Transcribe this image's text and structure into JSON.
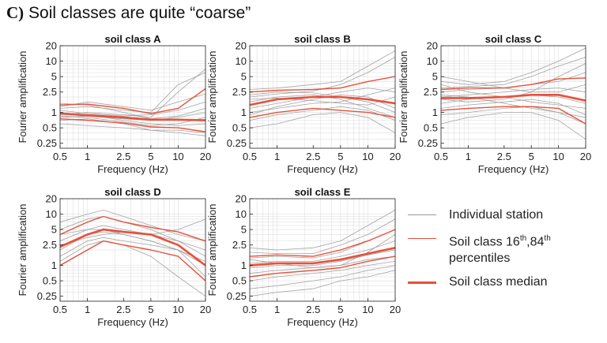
{
  "header": {
    "tag": "C)",
    "text": "Soil classes are quite “coarse”"
  },
  "colors": {
    "individual": "#9a9a9a",
    "percentile": "#e8503a",
    "median": "#e8503a",
    "axis": "#222222",
    "grid": "#d9d9d9"
  },
  "legend": {
    "individual_label": "Individual station",
    "percentile_line1_pre": "Soil class 16",
    "percentile_sup1": "th",
    "percentile_mid": ",84",
    "percentile_sup2": "th",
    "percentile_line2": "percentiles",
    "median_label": "Soil class median"
  },
  "chart_data": [
    {
      "type": "line",
      "title": "soil class A",
      "xlabel": "Frequency (Hz)",
      "ylabel": "Fourier amplification",
      "xscale": "log",
      "yscale": "log",
      "xlim": [
        0.5,
        20
      ],
      "ylim": [
        0.2,
        20
      ],
      "xticks": [
        "0.5",
        "1",
        "2.5",
        "5",
        "10",
        "20"
      ],
      "yticks": [
        "0.25",
        "0.5",
        "1",
        "2.5",
        "5",
        "10",
        "20"
      ],
      "grid": true,
      "x": [
        0.5,
        1,
        2.5,
        5,
        10,
        20
      ],
      "series": [
        {
          "role": "median",
          "values": [
            0.95,
            0.88,
            0.8,
            0.72,
            0.72,
            0.7
          ]
        },
        {
          "role": "p16",
          "values": [
            0.75,
            0.7,
            0.62,
            0.52,
            0.5,
            0.42
          ]
        },
        {
          "role": "p84",
          "values": [
            1.4,
            1.45,
            1.2,
            0.95,
            1.2,
            2.9
          ]
        },
        {
          "role": "station",
          "values": [
            1.2,
            1.3,
            1.1,
            1.0,
            3.5,
            6.0
          ]
        },
        {
          "role": "station",
          "values": [
            0.9,
            1.0,
            0.9,
            0.8,
            2.5,
            7.0
          ]
        },
        {
          "role": "station",
          "values": [
            1.3,
            1.6,
            1.3,
            1.1,
            1.6,
            2.3
          ]
        },
        {
          "role": "station",
          "values": [
            1.1,
            0.95,
            0.85,
            0.9,
            1.1,
            1.6
          ]
        },
        {
          "role": "station",
          "values": [
            0.8,
            0.85,
            0.75,
            0.7,
            0.8,
            1.0
          ]
        },
        {
          "role": "station",
          "values": [
            1.0,
            0.9,
            0.7,
            0.6,
            0.55,
            0.6
          ]
        },
        {
          "role": "station",
          "values": [
            0.7,
            0.75,
            0.6,
            0.45,
            0.45,
            0.4
          ]
        },
        {
          "role": "station",
          "values": [
            0.6,
            0.55,
            0.5,
            0.45,
            0.4,
            0.35
          ]
        },
        {
          "role": "station",
          "values": [
            1.5,
            1.4,
            1.0,
            0.75,
            0.85,
            1.2
          ]
        },
        {
          "role": "station",
          "values": [
            0.85,
            0.8,
            0.65,
            0.55,
            0.6,
            0.8
          ]
        }
      ]
    },
    {
      "type": "line",
      "title": "soil class B",
      "xlabel": "Frequency (Hz)",
      "ylabel": "Fourier amplification",
      "xscale": "log",
      "yscale": "log",
      "xlim": [
        0.5,
        20
      ],
      "ylim": [
        0.2,
        20
      ],
      "xticks": [
        "0.5",
        "1",
        "2.5",
        "5",
        "10",
        "20"
      ],
      "yticks": [
        "0.25",
        "0.5",
        "1",
        "2.5",
        "5",
        "10",
        "20"
      ],
      "grid": true,
      "x": [
        0.5,
        1,
        2.5,
        5,
        10,
        20
      ],
      "series": [
        {
          "role": "median",
          "values": [
            1.4,
            1.8,
            2.0,
            2.0,
            1.8,
            1.5
          ]
        },
        {
          "role": "p16",
          "values": [
            0.8,
            1.0,
            1.2,
            1.1,
            1.0,
            0.8
          ]
        },
        {
          "role": "p84",
          "values": [
            2.5,
            2.7,
            2.8,
            3.0,
            4.0,
            5.0
          ]
        },
        {
          "role": "station",
          "values": [
            2.8,
            3.0,
            3.5,
            4.0,
            8.0,
            16.0
          ]
        },
        {
          "role": "station",
          "values": [
            2.0,
            2.3,
            2.6,
            3.5,
            6.0,
            12.0
          ]
        },
        {
          "role": "station",
          "values": [
            1.2,
            1.5,
            2.0,
            2.5,
            3.0,
            2.5
          ]
        },
        {
          "role": "station",
          "values": [
            0.9,
            1.3,
            1.8,
            2.2,
            2.0,
            1.2
          ]
        },
        {
          "role": "station",
          "values": [
            1.6,
            2.0,
            2.2,
            1.8,
            1.2,
            0.8
          ]
        },
        {
          "role": "station",
          "values": [
            0.7,
            0.9,
            1.1,
            1.3,
            1.1,
            0.7
          ]
        },
        {
          "role": "station",
          "values": [
            0.5,
            0.6,
            0.9,
            1.0,
            0.8,
            0.4
          ]
        },
        {
          "role": "station",
          "values": [
            2.2,
            2.5,
            2.4,
            2.0,
            1.6,
            1.0
          ]
        },
        {
          "role": "station",
          "values": [
            1.0,
            1.2,
            1.5,
            1.6,
            2.2,
            3.0
          ]
        },
        {
          "role": "station",
          "values": [
            1.8,
            1.9,
            1.7,
            1.5,
            1.4,
            2.0
          ]
        }
      ]
    },
    {
      "type": "line",
      "title": "soil class C",
      "xlabel": "Frequency (Hz)",
      "ylabel": "Fourier amplification",
      "xscale": "log",
      "yscale": "log",
      "xlim": [
        0.5,
        20
      ],
      "ylim": [
        0.2,
        20
      ],
      "xticks": [
        "0.5",
        "1",
        "2.5",
        "5",
        "10",
        "20"
      ],
      "yticks": [
        "0.25",
        "0.5",
        "1",
        "2.5",
        "5",
        "10",
        "20"
      ],
      "grid": true,
      "x": [
        0.5,
        1,
        2.5,
        5,
        10,
        20
      ],
      "series": [
        {
          "role": "median",
          "values": [
            1.9,
            1.9,
            2.0,
            2.2,
            2.2,
            1.7
          ]
        },
        {
          "role": "p16",
          "values": [
            1.1,
            1.2,
            1.3,
            1.3,
            1.2,
            0.6
          ]
        },
        {
          "role": "p84",
          "values": [
            2.8,
            3.0,
            3.0,
            3.5,
            4.5,
            4.7
          ]
        },
        {
          "role": "station",
          "values": [
            4.0,
            3.5,
            4.0,
            6.0,
            10.0,
            18.0
          ]
        },
        {
          "role": "station",
          "values": [
            3.0,
            3.2,
            3.5,
            5.0,
            8.0,
            12.0
          ]
        },
        {
          "role": "station",
          "values": [
            2.5,
            2.8,
            3.0,
            3.5,
            4.0,
            6.0
          ]
        },
        {
          "role": "station",
          "values": [
            2.0,
            2.2,
            2.5,
            2.8,
            3.0,
            2.5
          ]
        },
        {
          "role": "station",
          "values": [
            1.5,
            1.8,
            2.0,
            2.2,
            2.0,
            1.5
          ]
        },
        {
          "role": "station",
          "values": [
            1.2,
            1.4,
            1.6,
            1.8,
            1.5,
            0.9
          ]
        },
        {
          "role": "station",
          "values": [
            0.9,
            1.0,
            1.2,
            1.3,
            1.0,
            0.6
          ]
        },
        {
          "role": "station",
          "values": [
            0.6,
            0.8,
            1.0,
            1.0,
            0.7,
            0.3
          ]
        },
        {
          "role": "station",
          "values": [
            5.0,
            4.0,
            3.0,
            2.5,
            2.5,
            3.5
          ]
        },
        {
          "role": "station",
          "values": [
            3.5,
            2.5,
            2.0,
            1.6,
            1.4,
            1.2
          ]
        },
        {
          "role": "station",
          "values": [
            1.8,
            1.6,
            1.8,
            2.5,
            5.0,
            9.0
          ]
        },
        {
          "role": "station",
          "values": [
            2.2,
            2.0,
            1.5,
            1.2,
            1.0,
            0.8
          ]
        }
      ]
    },
    {
      "type": "line",
      "title": "soil class D",
      "xlabel": "Frequency (Hz)",
      "ylabel": "Fourier amplification",
      "xscale": "log",
      "yscale": "log",
      "xlim": [
        0.5,
        20
      ],
      "ylim": [
        0.2,
        20
      ],
      "xticks": [
        "0.5",
        "1",
        "2.5",
        "5",
        "10",
        "20"
      ],
      "yticks": [
        "0.25",
        "0.5",
        "1",
        "2.5",
        "5",
        "10",
        "20"
      ],
      "grid": true,
      "x": [
        0.5,
        1,
        1.5,
        2.5,
        5,
        10,
        20
      ],
      "series": [
        {
          "role": "median",
          "values": [
            2.3,
            4.0,
            5.0,
            4.5,
            4.0,
            2.5,
            1.0
          ]
        },
        {
          "role": "p16",
          "values": [
            1.0,
            2.0,
            3.0,
            2.5,
            2.0,
            1.5,
            0.5
          ]
        },
        {
          "role": "p84",
          "values": [
            4.0,
            7.0,
            9.0,
            7.0,
            5.5,
            4.5,
            3.0
          ]
        },
        {
          "role": "station",
          "values": [
            7.0,
            10.0,
            12.0,
            9.0,
            6.0,
            4.0,
            3.0
          ]
        },
        {
          "role": "station",
          "values": [
            5.0,
            8.0,
            9.0,
            7.0,
            5.0,
            3.0,
            2.0
          ]
        },
        {
          "role": "station",
          "values": [
            3.0,
            5.0,
            6.0,
            5.0,
            4.0,
            5.0,
            8.0
          ]
        },
        {
          "role": "station",
          "values": [
            2.0,
            4.0,
            4.5,
            4.0,
            3.0,
            2.0,
            1.0
          ]
        },
        {
          "role": "station",
          "values": [
            1.5,
            3.0,
            3.5,
            3.0,
            2.5,
            2.0,
            0.6
          ]
        },
        {
          "role": "station",
          "values": [
            1.2,
            2.5,
            3.0,
            2.5,
            1.5,
            0.6,
            0.25
          ]
        },
        {
          "role": "station",
          "values": [
            2.5,
            3.5,
            4.0,
            4.5,
            4.0,
            3.0,
            1.5
          ]
        },
        {
          "role": "station",
          "values": [
            4.0,
            5.0,
            5.0,
            4.0,
            3.0,
            2.0,
            1.2
          ]
        }
      ]
    },
    {
      "type": "line",
      "title": "soil class E",
      "xlabel": "Frequency (Hz)",
      "ylabel": "Fourier amplification",
      "xscale": "log",
      "yscale": "log",
      "xlim": [
        0.5,
        20
      ],
      "ylim": [
        0.2,
        20
      ],
      "xticks": [
        "0.5",
        "1",
        "2.5",
        "5",
        "10",
        "20"
      ],
      "yticks": [
        "0.25",
        "0.5",
        "1",
        "2.5",
        "5",
        "10",
        "20"
      ],
      "grid": true,
      "x": [
        0.5,
        1,
        2.5,
        5,
        10,
        20
      ],
      "series": [
        {
          "role": "median",
          "values": [
            1.0,
            1.1,
            1.1,
            1.3,
            1.7,
            2.2
          ]
        },
        {
          "role": "p16",
          "values": [
            0.6,
            0.7,
            0.8,
            0.9,
            1.2,
            1.5
          ]
        },
        {
          "role": "p84",
          "values": [
            1.5,
            1.6,
            1.5,
            2.0,
            3.0,
            5.0
          ]
        },
        {
          "role": "station",
          "values": [
            2.2,
            2.0,
            2.2,
            3.0,
            6.0,
            12.0
          ]
        },
        {
          "role": "station",
          "values": [
            1.8,
            1.7,
            1.7,
            2.5,
            4.0,
            8.0
          ]
        },
        {
          "role": "station",
          "values": [
            1.4,
            1.5,
            1.4,
            1.8,
            3.0,
            5.0
          ]
        },
        {
          "role": "station",
          "values": [
            1.1,
            1.2,
            1.2,
            1.5,
            2.0,
            3.0
          ]
        },
        {
          "role": "station",
          "values": [
            0.9,
            1.0,
            1.0,
            1.2,
            1.6,
            2.0
          ]
        },
        {
          "role": "station",
          "values": [
            0.7,
            0.8,
            0.9,
            1.0,
            1.3,
            1.5
          ]
        },
        {
          "role": "station",
          "values": [
            0.5,
            0.6,
            0.7,
            0.8,
            1.0,
            1.2
          ]
        },
        {
          "role": "station",
          "values": [
            0.35,
            0.4,
            0.5,
            0.6,
            0.8,
            1.0
          ]
        },
        {
          "role": "station",
          "values": [
            0.25,
            0.3,
            0.35,
            0.5,
            0.6,
            0.8
          ]
        },
        {
          "role": "station",
          "values": [
            1.3,
            1.1,
            0.9,
            1.0,
            1.8,
            4.0
          ]
        }
      ]
    }
  ]
}
